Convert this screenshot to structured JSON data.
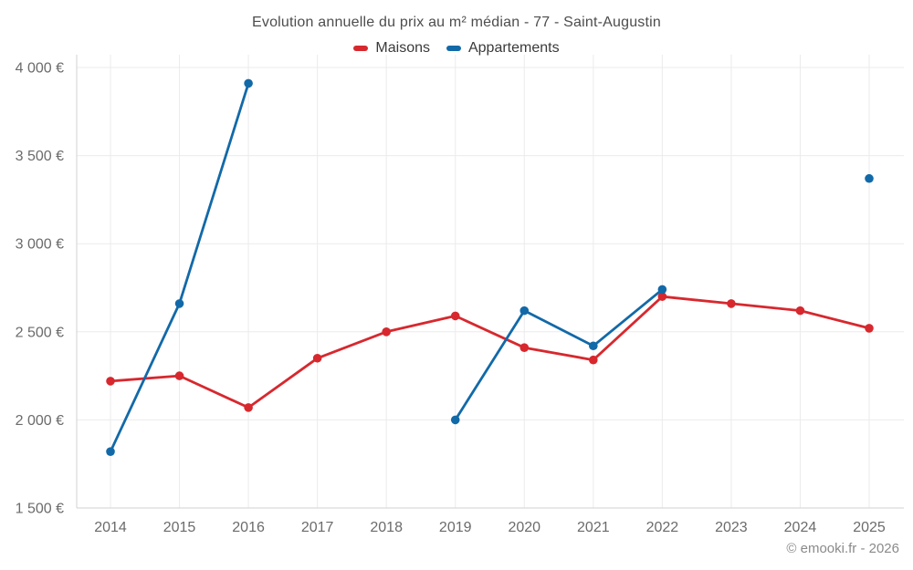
{
  "chart_data": {
    "type": "line",
    "title": "Evolution annuelle du prix au m² médian - 77 - Saint-Augustin",
    "x": [
      2014,
      2015,
      2016,
      2017,
      2018,
      2019,
      2020,
      2021,
      2022,
      2023,
      2024,
      2025
    ],
    "series": [
      {
        "name": "Maisons",
        "color": "#d7282e",
        "values": [
          2220,
          2250,
          2070,
          2350,
          2500,
          2590,
          2410,
          2340,
          2700,
          2660,
          2620,
          2520
        ]
      },
      {
        "name": "Appartements",
        "color": "#1269a8",
        "values": [
          1820,
          2660,
          3910,
          null,
          null,
          2000,
          2620,
          2420,
          2740,
          null,
          null,
          3370
        ]
      }
    ],
    "ylim": [
      1500,
      4000
    ],
    "ytick_step": 500,
    "ytick_labels": [
      "1 500 €",
      "2 000 €",
      "2 500 €",
      "3 000 €",
      "3 500 €",
      "4 000 €"
    ],
    "xlabel": "",
    "ylabel": "",
    "grid": true,
    "legend_position": "top",
    "footer": "© emooki.fr - 2026",
    "colors": {
      "grid": "#ebebeb",
      "axis": "#d2d2d2",
      "tick_text": "#6b6b6b",
      "title_text": "#4d4d4d",
      "footer_text": "#8a8a8a"
    }
  }
}
